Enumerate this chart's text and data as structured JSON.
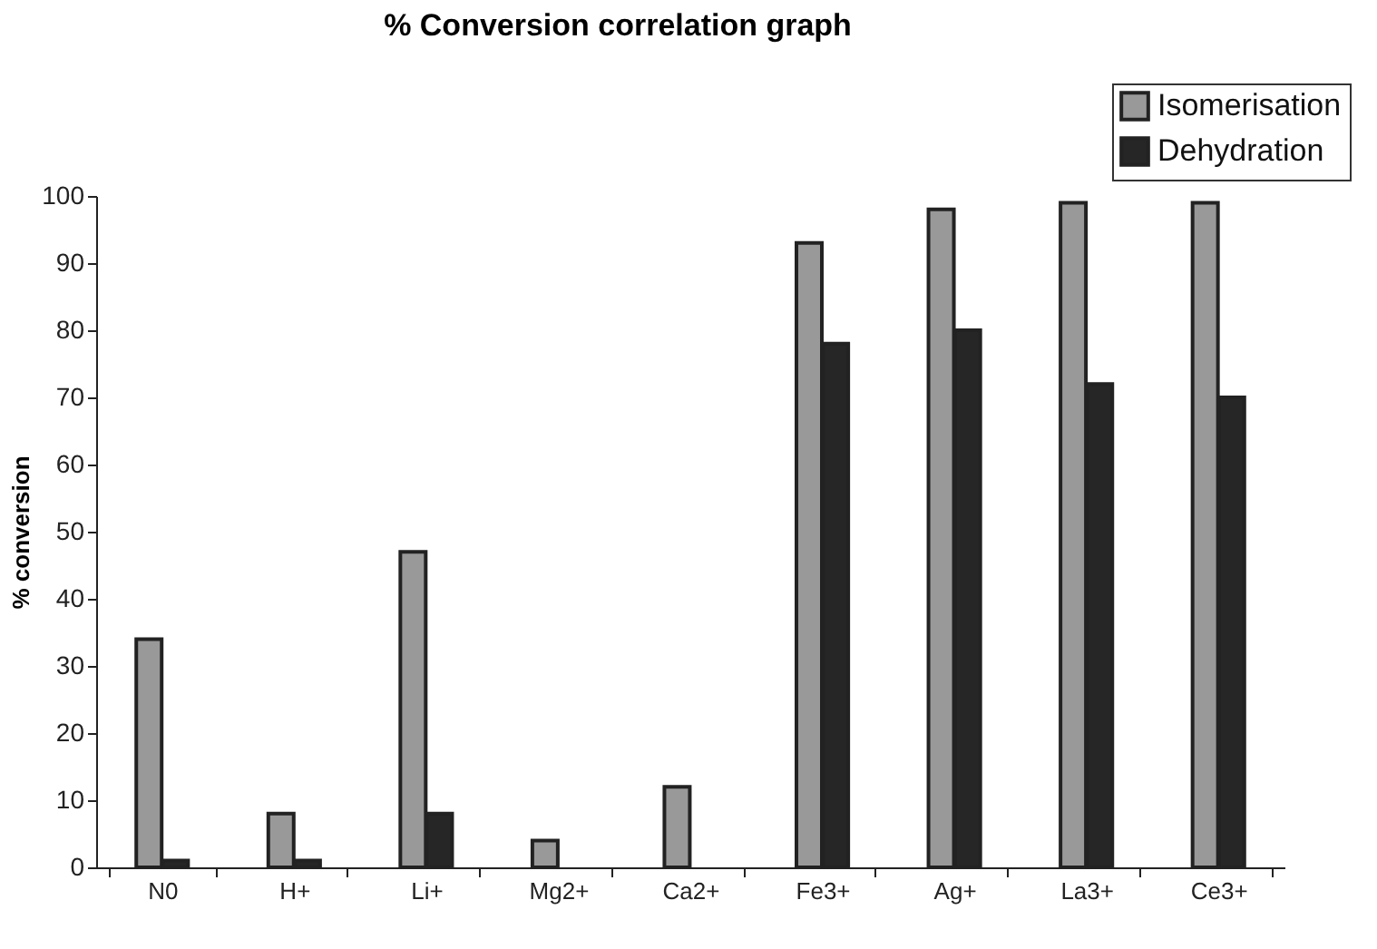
{
  "chart_data": {
    "type": "bar",
    "title": "% Conversion correlation graph",
    "ylabel": "% conversion",
    "categories": [
      "N0",
      "H+",
      "Li+",
      "Mg2+",
      "Ca2+",
      "Fe3+",
      "Ag+",
      "La3+",
      "Ce3+"
    ],
    "series": [
      {
        "name": "Isomerisation",
        "color": "#999999",
        "values": [
          34,
          8,
          47,
          4,
          12,
          93,
          98,
          99,
          99
        ]
      },
      {
        "name": "Dehydration",
        "color": "#262626",
        "values": [
          1,
          1,
          8,
          null,
          null,
          78,
          80,
          72,
          70
        ]
      }
    ],
    "ylim": [
      0,
      100
    ],
    "yticks": [
      0,
      10,
      20,
      30,
      40,
      50,
      60,
      70,
      80,
      90,
      100
    ],
    "grid": false,
    "legend": "top right"
  }
}
